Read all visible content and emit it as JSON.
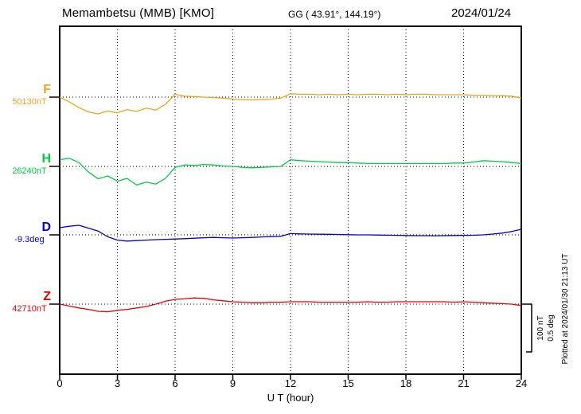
{
  "header": {
    "title": "Memambetsu (MMB)  [KMO]",
    "coordinates": "GG ( 43.91°, 144.19°)",
    "date": "2024/01/24"
  },
  "scale_bar": {
    "labels": [
      "100 nT",
      "0.5 deg"
    ]
  },
  "footer_note": "Plotted at 2024/01/30 21:13 UT",
  "chart_data": {
    "type": "line",
    "title": "Memambetsu (MMB) [KMO] magnetogram 2024/01/24",
    "xlabel": "U T (hour)",
    "x_range": [
      0,
      24
    ],
    "x_ticks": [
      0,
      3,
      6,
      9,
      12,
      15,
      18,
      21,
      24
    ],
    "grid": "dotted vertical lines every 3 h; dotted horizontal baseline per component",
    "legend_position": "left-of-axis component labels",
    "scale": {
      "per_division_nT": 100,
      "per_division_deg": 0.5
    },
    "x": [
      0,
      0.5,
      1,
      1.5,
      2,
      2.5,
      3,
      3.5,
      4,
      4.5,
      5,
      5.5,
      6,
      6.5,
      7,
      7.5,
      8,
      8.5,
      9,
      9.5,
      10,
      10.5,
      11,
      11.5,
      12,
      12.5,
      13,
      13.5,
      14,
      14.5,
      15,
      15.5,
      16,
      16.5,
      17,
      17.5,
      18,
      18.5,
      19,
      19.5,
      20,
      20.5,
      21,
      21.5,
      22,
      22.5,
      23,
      23.5,
      24
    ],
    "series": [
      {
        "name": "F",
        "unit": "nT",
        "baseline_value": 50130,
        "baseline_label": "50130nT",
        "color": "#f0a41c",
        "deviations": [
          0,
          -10,
          -22,
          -31,
          -35,
          -29,
          -33,
          -26,
          -30,
          -23,
          -27,
          -15,
          6,
          2,
          1,
          0,
          -1,
          -2,
          -4,
          -5,
          -6,
          -5,
          -4,
          -2,
          7,
          6,
          6,
          5,
          6,
          5,
          6,
          5,
          6,
          6,
          5,
          6,
          5,
          6,
          6,
          5,
          5,
          5,
          5,
          4,
          4,
          3,
          3,
          2,
          -2
        ]
      },
      {
        "name": "H",
        "unit": "nT",
        "baseline_value": 26240,
        "baseline_label": "26240nT",
        "color": "#00cc44",
        "deviations": [
          14,
          17,
          8,
          -12,
          -26,
          -20,
          -31,
          -25,
          -39,
          -33,
          -37,
          -25,
          -2,
          3,
          2,
          4,
          3,
          1,
          0,
          -2,
          -3,
          -2,
          -1,
          0,
          14,
          12,
          11,
          10,
          9,
          8,
          8,
          7,
          6,
          6,
          6,
          6,
          6,
          6,
          6,
          6,
          6,
          7,
          7,
          9,
          12,
          11,
          10,
          8,
          6
        ]
      },
      {
        "name": "D",
        "unit": "deg",
        "baseline_value": -9.3,
        "baseline_label": "-9.3deg",
        "color": "#0000dd",
        "deviations": [
          0.075,
          0.09,
          0.1,
          0.07,
          0.04,
          -0.02,
          -0.055,
          -0.065,
          -0.06,
          -0.055,
          -0.05,
          -0.047,
          -0.043,
          -0.04,
          -0.035,
          -0.03,
          -0.027,
          -0.03,
          -0.033,
          -0.03,
          -0.027,
          -0.022,
          -0.018,
          -0.015,
          0.013,
          0.01,
          0.008,
          0.007,
          0.006,
          0.004,
          0.002,
          0,
          0,
          -0.002,
          -0.003,
          -0.005,
          -0.007,
          -0.008,
          -0.008,
          -0.009,
          -0.008,
          -0.007,
          -0.006,
          -0.004,
          0,
          0.008,
          0.018,
          0.035,
          0.058
        ]
      },
      {
        "name": "Z",
        "unit": "nT",
        "baseline_value": 42710,
        "baseline_label": "42710nT",
        "color": "#ee0000",
        "deviations": [
          0,
          -4,
          -8,
          -11,
          -15,
          -16,
          -13,
          -11,
          -8,
          -5,
          0,
          6,
          10,
          11,
          13,
          12,
          9,
          7,
          5,
          4,
          3,
          3,
          4,
          4,
          5,
          5,
          5,
          4,
          4,
          4,
          4,
          4,
          5,
          4,
          4,
          5,
          5,
          5,
          5,
          5,
          5,
          4,
          5,
          4,
          3,
          2,
          1,
          0,
          -3
        ]
      }
    ]
  }
}
